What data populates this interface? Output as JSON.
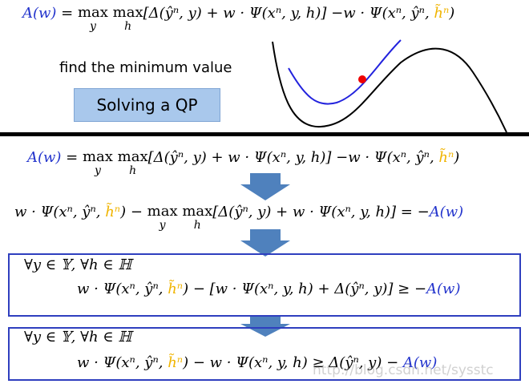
{
  "top": {
    "formula": [
      {
        "text": "A(w)",
        "color": "#2233cc"
      },
      {
        "text": " = "
      },
      {
        "text": "max",
        "sub": "y"
      },
      {
        "text": " "
      },
      {
        "text": "max",
        "sub": "h"
      },
      {
        "text": "[Δ(ŷⁿ, y) + w · Ψ(xⁿ, y, h)] −w · Ψ(xⁿ, ŷⁿ, "
      },
      {
        "text": "h̃ⁿ",
        "color": "#f0b400"
      },
      {
        "text": ")"
      }
    ],
    "note": "find the minimum value",
    "button": "Solving a QP"
  },
  "steps": [
    {
      "lines": [
        [
          {
            "text": "A(w)",
            "color": "#2233cc"
          },
          {
            "text": " = "
          },
          {
            "text": "max",
            "sub": "y"
          },
          {
            "text": " "
          },
          {
            "text": "max",
            "sub": "h"
          },
          {
            "text": "[Δ(ŷⁿ, y) + w · Ψ(xⁿ, y, h)] −w · Ψ(xⁿ, ŷⁿ, "
          },
          {
            "text": "h̃ⁿ",
            "color": "#f0b400"
          },
          {
            "text": ")"
          }
        ]
      ]
    },
    {
      "lines": [
        [
          {
            "text": "w · Ψ(xⁿ, ŷⁿ, "
          },
          {
            "text": "h̃ⁿ",
            "color": "#f0b400"
          },
          {
            "text": ") − "
          },
          {
            "text": "max",
            "sub": "y"
          },
          {
            "text": " "
          },
          {
            "text": "max",
            "sub": "h"
          },
          {
            "text": "[Δ(ŷⁿ, y) + w · Ψ(xⁿ, y, h)] = −"
          },
          {
            "text": "A(w)",
            "color": "#2233cc"
          }
        ]
      ]
    },
    {
      "lines": [
        [
          {
            "text": "∀y ∈ 𝕐, ∀h ∈ ℍ"
          }
        ],
        [
          {
            "text": "w · Ψ(xⁿ, ŷⁿ, "
          },
          {
            "text": "h̃ⁿ",
            "color": "#f0b400"
          },
          {
            "text": ") − [w · Ψ(xⁿ, y, h) + Δ(ŷⁿ, y)] ≥ −"
          },
          {
            "text": "A(w)",
            "color": "#2233cc"
          }
        ]
      ]
    },
    {
      "lines": [
        [
          {
            "text": "∀y ∈ 𝕐, ∀h ∈ ℍ"
          }
        ],
        [
          {
            "text": "w · Ψ(xⁿ, ŷⁿ, "
          },
          {
            "text": "h̃ⁿ",
            "color": "#f0b400"
          },
          {
            "text": ") − w · Ψ(xⁿ, y, h) ≥ Δ(ŷⁿ, y) − "
          },
          {
            "text": "A(w)",
            "color": "#2233cc"
          }
        ]
      ]
    }
  ],
  "watermark": "http://blog.csdn.net/sysstc"
}
